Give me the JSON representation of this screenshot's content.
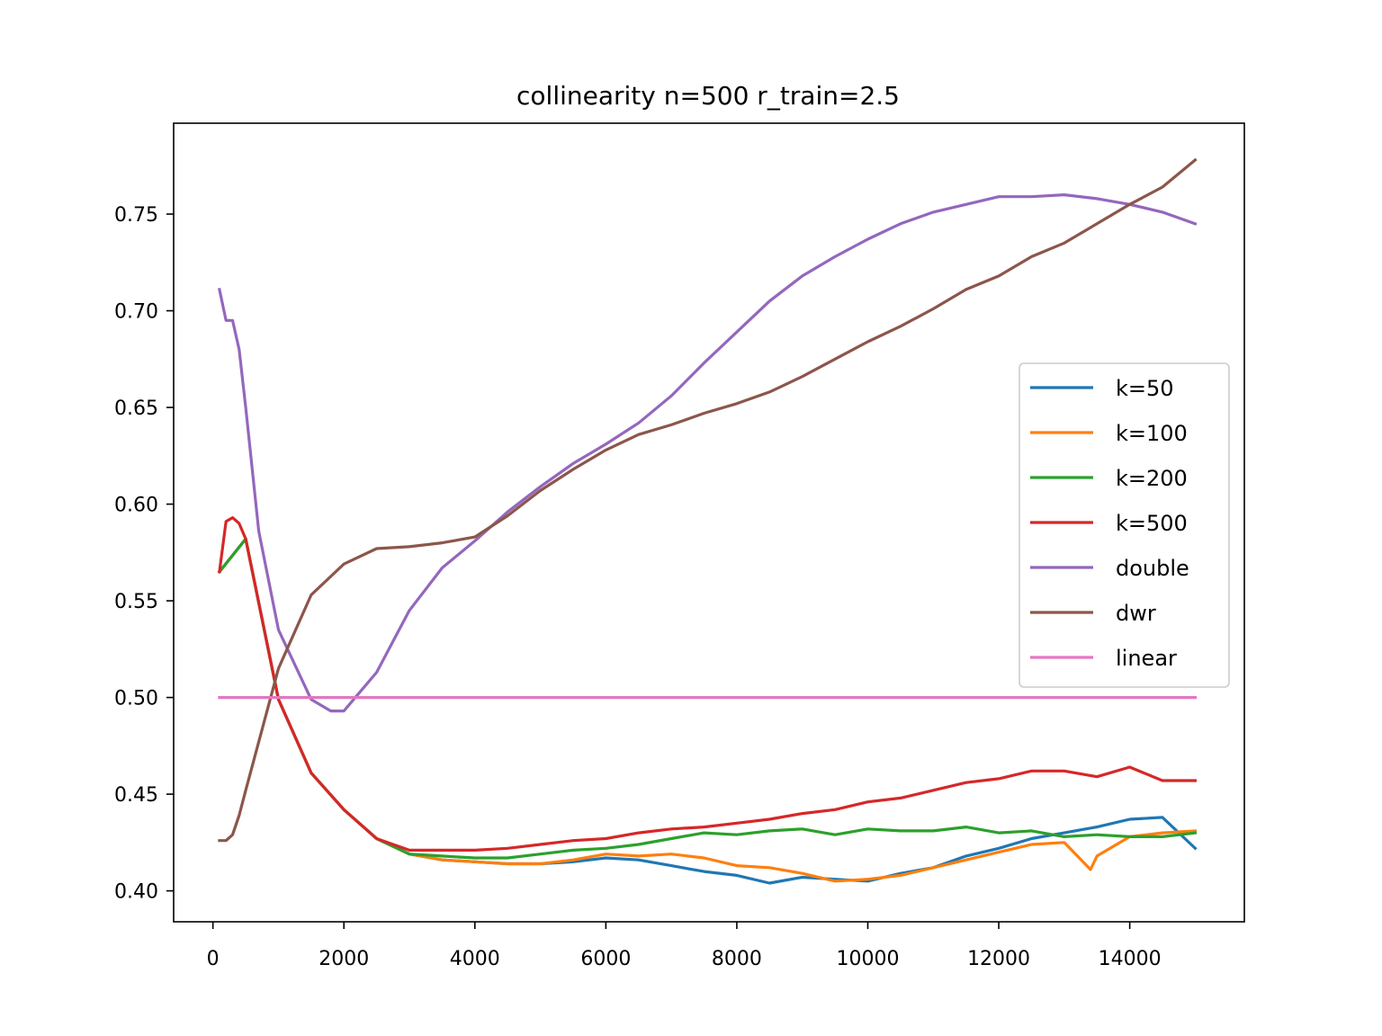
{
  "chart_data": {
    "type": "line",
    "title": "collinearity n=500 r_train=2.5",
    "xlabel": "",
    "ylabel": "",
    "xlim": [
      -600,
      15750
    ],
    "ylim": [
      0.384,
      0.797
    ],
    "xticks": [
      0,
      2000,
      4000,
      6000,
      8000,
      10000,
      12000,
      14000
    ],
    "xtick_labels": [
      "0",
      "2000",
      "4000",
      "6000",
      "8000",
      "10000",
      "12000",
      "14000"
    ],
    "yticks": [
      0.4,
      0.45,
      0.5,
      0.55,
      0.6,
      0.65,
      0.7,
      0.75
    ],
    "ytick_labels": [
      "0.40",
      "0.45",
      "0.50",
      "0.55",
      "0.60",
      "0.65",
      "0.70",
      "0.75"
    ],
    "grid": false,
    "legend_position": "center-right",
    "series": [
      {
        "name": "k=50",
        "color": "#1f77b4",
        "x": [
          100,
          500,
          1000,
          1500,
          2000,
          2500,
          3000,
          3500,
          4000,
          4500,
          5000,
          5500,
          6000,
          6500,
          7000,
          7500,
          8000,
          8500,
          9000,
          9500,
          10000,
          10500,
          11000,
          11500,
          12000,
          12500,
          13000,
          13500,
          14000,
          14500,
          15000
        ],
        "y": [
          0.565,
          0.582,
          0.499,
          0.461,
          0.442,
          0.427,
          0.419,
          0.416,
          0.415,
          0.414,
          0.414,
          0.415,
          0.417,
          0.416,
          0.413,
          0.41,
          0.408,
          0.404,
          0.407,
          0.406,
          0.405,
          0.409,
          0.412,
          0.418,
          0.422,
          0.427,
          0.43,
          0.433,
          0.437,
          0.438,
          0.422
        ]
      },
      {
        "name": "k=100",
        "color": "#ff7f0e",
        "x": [
          100,
          500,
          1000,
          1500,
          2000,
          2500,
          3000,
          3500,
          4000,
          4500,
          5000,
          5500,
          6000,
          6500,
          7000,
          7500,
          8000,
          8500,
          9000,
          9500,
          10000,
          10500,
          11000,
          11500,
          12000,
          12500,
          13000,
          13400,
          13500,
          14000,
          14500,
          15000
        ],
        "y": [
          0.565,
          0.582,
          0.499,
          0.461,
          0.442,
          0.427,
          0.419,
          0.416,
          0.415,
          0.414,
          0.414,
          0.416,
          0.419,
          0.418,
          0.419,
          0.417,
          0.413,
          0.412,
          0.409,
          0.405,
          0.406,
          0.408,
          0.412,
          0.416,
          0.42,
          0.424,
          0.425,
          0.411,
          0.418,
          0.428,
          0.43,
          0.431
        ]
      },
      {
        "name": "k=200",
        "color": "#2ca02c",
        "x": [
          100,
          500,
          1000,
          1500,
          2000,
          2500,
          3000,
          3500,
          4000,
          4500,
          5000,
          5500,
          6000,
          6500,
          7000,
          7500,
          8000,
          8500,
          9000,
          9500,
          10000,
          10500,
          11000,
          11500,
          12000,
          12500,
          13000,
          13500,
          14000,
          14500,
          15000
        ],
        "y": [
          0.565,
          0.582,
          0.499,
          0.461,
          0.442,
          0.427,
          0.419,
          0.418,
          0.417,
          0.417,
          0.419,
          0.421,
          0.422,
          0.424,
          0.427,
          0.43,
          0.429,
          0.431,
          0.432,
          0.429,
          0.432,
          0.431,
          0.431,
          0.433,
          0.43,
          0.431,
          0.428,
          0.429,
          0.428,
          0.428,
          0.43
        ]
      },
      {
        "name": "k=500",
        "color": "#d62728",
        "x": [
          100,
          200,
          300,
          400,
          500,
          1000,
          1500,
          2000,
          2500,
          3000,
          3500,
          4000,
          4500,
          5000,
          5500,
          6000,
          6500,
          7000,
          7500,
          8000,
          8500,
          9000,
          9500,
          10000,
          10500,
          11000,
          11500,
          12000,
          12500,
          13000,
          13500,
          14000,
          14500,
          15000
        ],
        "y": [
          0.565,
          0.591,
          0.593,
          0.59,
          0.582,
          0.499,
          0.461,
          0.442,
          0.427,
          0.421,
          0.421,
          0.421,
          0.422,
          0.424,
          0.426,
          0.427,
          0.43,
          0.432,
          0.433,
          0.435,
          0.437,
          0.44,
          0.442,
          0.446,
          0.448,
          0.452,
          0.456,
          0.458,
          0.462,
          0.462,
          0.459,
          0.464,
          0.457,
          0.457
        ]
      },
      {
        "name": "double",
        "color": "#9467bd",
        "x": [
          100,
          200,
          300,
          400,
          500,
          700,
          1000,
          1500,
          1800,
          2000,
          2500,
          3000,
          3500,
          4000,
          4500,
          5000,
          5500,
          6000,
          6500,
          7000,
          7500,
          8000,
          8500,
          9000,
          9500,
          10000,
          10500,
          11000,
          11500,
          12000,
          12500,
          13000,
          13500,
          14000,
          14500,
          15000
        ],
        "y": [
          0.711,
          0.695,
          0.695,
          0.68,
          0.65,
          0.586,
          0.535,
          0.499,
          0.493,
          0.493,
          0.513,
          0.545,
          0.567,
          0.581,
          0.596,
          0.609,
          0.621,
          0.631,
          0.642,
          0.656,
          0.673,
          0.689,
          0.705,
          0.718,
          0.728,
          0.737,
          0.745,
          0.751,
          0.755,
          0.759,
          0.759,
          0.76,
          0.758,
          0.755,
          0.751,
          0.745
        ]
      },
      {
        "name": "dwr",
        "color": "#8c564b",
        "x": [
          100,
          200,
          300,
          400,
          500,
          1000,
          1500,
          2000,
          2500,
          3000,
          3500,
          4000,
          4500,
          5000,
          5500,
          6000,
          6500,
          7000,
          7500,
          8000,
          8500,
          9000,
          9500,
          10000,
          10500,
          11000,
          11500,
          12000,
          12500,
          13000,
          13500,
          14000,
          14500,
          15000
        ],
        "y": [
          0.426,
          0.426,
          0.429,
          0.439,
          0.452,
          0.515,
          0.553,
          0.569,
          0.577,
          0.578,
          0.58,
          0.583,
          0.594,
          0.607,
          0.618,
          0.628,
          0.636,
          0.641,
          0.647,
          0.652,
          0.658,
          0.666,
          0.675,
          0.684,
          0.692,
          0.701,
          0.711,
          0.718,
          0.728,
          0.735,
          0.745,
          0.755,
          0.764,
          0.778
        ]
      },
      {
        "name": "linear",
        "color": "#e377c2",
        "x": [
          100,
          15000
        ],
        "y": [
          0.5,
          0.5
        ]
      }
    ]
  }
}
